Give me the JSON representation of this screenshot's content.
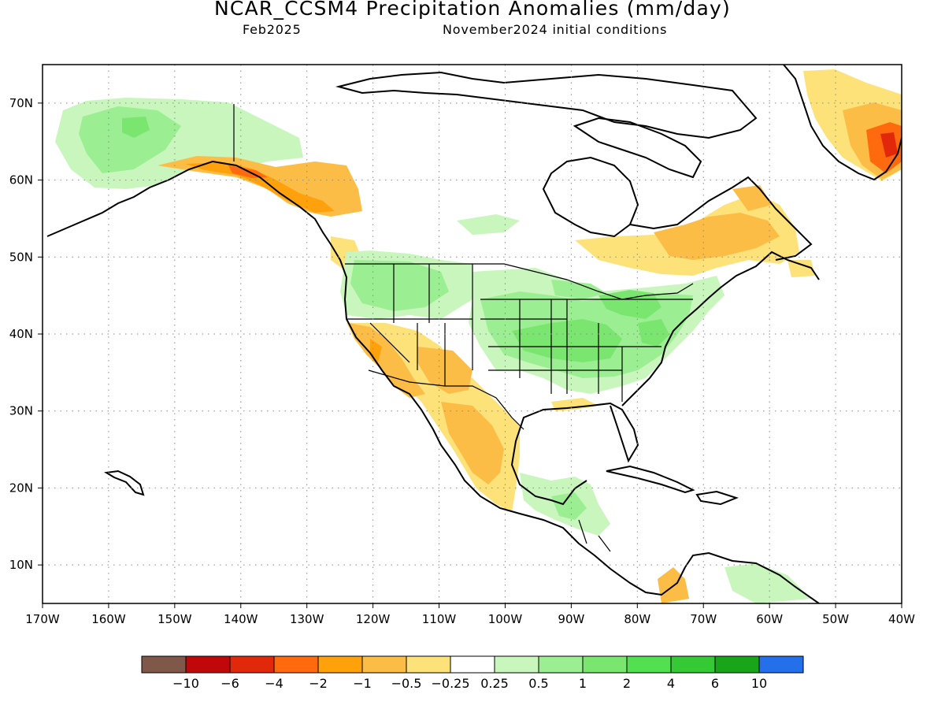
{
  "header": {
    "title": "NCAR_CCSM4 Precipitation Anomalies (mm/day)",
    "valid_month": "Feb2025",
    "init_conditions": "November2024 initial conditions"
  },
  "map": {
    "lon_range": [
      -170,
      -40
    ],
    "lat_range": [
      5,
      75
    ],
    "lon_ticks": [
      {
        "value": -170,
        "label": "170W"
      },
      {
        "value": -160,
        "label": "160W"
      },
      {
        "value": -150,
        "label": "150W"
      },
      {
        "value": -140,
        "label": "140W"
      },
      {
        "value": -130,
        "label": "130W"
      },
      {
        "value": -120,
        "label": "120W"
      },
      {
        "value": -110,
        "label": "110W"
      },
      {
        "value": -100,
        "label": "100W"
      },
      {
        "value": -90,
        "label": "90W"
      },
      {
        "value": -80,
        "label": "80W"
      },
      {
        "value": -70,
        "label": "70W"
      },
      {
        "value": -60,
        "label": "60W"
      },
      {
        "value": -50,
        "label": "50W"
      },
      {
        "value": -40,
        "label": "40W"
      }
    ],
    "lat_ticks": [
      {
        "value": 10,
        "label": "10N"
      },
      {
        "value": 20,
        "label": "20N"
      },
      {
        "value": 30,
        "label": "30N"
      },
      {
        "value": 40,
        "label": "40N"
      },
      {
        "value": 50,
        "label": "50N"
      },
      {
        "value": 60,
        "label": "60N"
      },
      {
        "value": 70,
        "label": "70N"
      }
    ],
    "gridlines": "dotted"
  },
  "colorbar": {
    "colors": [
      "#7f584a",
      "#c0080b",
      "#e1280a",
      "#ff6a0e",
      "#ffa10c",
      "#fbbd46",
      "#fde27a",
      "#ffffff",
      "#c8f6bd",
      "#9cee92",
      "#7ae670",
      "#53e050",
      "#35c935",
      "#18a519",
      "#2370ea"
    ],
    "labels": [
      "-10",
      "-6",
      "-4",
      "-2",
      "-1",
      "-0.5",
      "-0.25",
      "0.25",
      "0.5",
      "1",
      "2",
      "4",
      "6",
      "10"
    ]
  },
  "anomaly_regions": [
    {
      "region": "Alaska interior",
      "category": "0.25 to 0.5",
      "color": "#c8f6bd"
    },
    {
      "region": "Alaska west",
      "category": "0.5 to 1",
      "color": "#9cee92"
    },
    {
      "region": "Southern Alaska / Gulf of Alaska coast",
      "category": "-2 to -1",
      "color": "#ffa10c"
    },
    {
      "region": "Interior British Columbia",
      "category": "-1 to -0.5",
      "color": "#fbbd46"
    },
    {
      "region": "US Pacific Northwest",
      "category": "0.5 to 1",
      "color": "#9cee92"
    },
    {
      "region": "Central and Eastern US",
      "category": "0.5 to 1",
      "color": "#9cee92"
    },
    {
      "region": "Ohio Valley",
      "category": "1 to 2",
      "color": "#7ae670"
    },
    {
      "region": "California / Southwest US",
      "category": "-1 to -0.5",
      "color": "#fbbd46"
    },
    {
      "region": "Northwest Mexico",
      "category": "-1 to -0.5",
      "color": "#fbbd46"
    },
    {
      "region": "Southern Mexico / Central America",
      "category": "0.5 to 1",
      "color": "#9cee92"
    },
    {
      "region": "Quebec / Labrador",
      "category": "-1 to -0.5",
      "color": "#fbbd46"
    },
    {
      "region": "Southeast Greenland",
      "category": "-4 to -1",
      "color": "#ff6a0e"
    },
    {
      "region": "Northern South America",
      "category": "-1 to -0.25",
      "color": "#fde27a"
    }
  ]
}
